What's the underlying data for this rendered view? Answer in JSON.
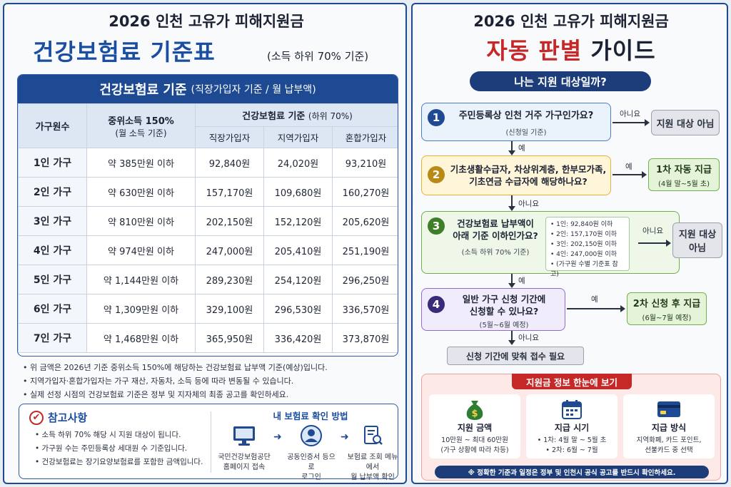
{
  "left": {
    "title_line1": "2026 인천 고유가 피해지원금",
    "title_line2": "건강보험료 기준표",
    "title_note": "(소득 하위 70% 기준)",
    "table_title": "건강보험료 기준",
    "table_title_sub": "(직장가입자 기준 / 월 납부액)",
    "col_household": "가구원수",
    "col_income": "중위소득 150%",
    "col_income_sub": "(월 소득 기준)",
    "col_premium": "건강보험료 기준",
    "col_premium_sub": "(하위 70%)",
    "col_employee": "직장가입자",
    "col_regional": "지역가입자",
    "col_mixed": "혼합가입자",
    "rows": [
      {
        "household": "1인 가구",
        "income": "약 385만원 이하",
        "employee": "92,840원",
        "regional": "24,020원",
        "mixed": "93,210원"
      },
      {
        "household": "2인 가구",
        "income": "약 630만원 이하",
        "employee": "157,170원",
        "regional": "109,680원",
        "mixed": "160,270원"
      },
      {
        "household": "3인 가구",
        "income": "약 810만원 이하",
        "employee": "202,150원",
        "regional": "152,120원",
        "mixed": "205,620원"
      },
      {
        "household": "4인 가구",
        "income": "약 974만원 이하",
        "employee": "247,000원",
        "regional": "205,410원",
        "mixed": "251,190원"
      },
      {
        "household": "5인 가구",
        "income": "약 1,144만원 이하",
        "employee": "289,230원",
        "regional": "254,120원",
        "mixed": "296,250원"
      },
      {
        "household": "6인 가구",
        "income": "약 1,309만원 이하",
        "employee": "329,100원",
        "regional": "296,530원",
        "mixed": "336,570원"
      },
      {
        "household": "7인 가구",
        "income": "약 1,468만원 이하",
        "employee": "365,950원",
        "regional": "336,420원",
        "mixed": "373,870원"
      }
    ],
    "notes": [
      "위 금액은 2026년 기준 중위소득 150%에 해당하는 건강보험료 납부액 기준(예상)입니다.",
      "지역가입자·혼합가입자는 가구 재산, 자동차, 소득 등에 따라 변동될 수 있습니다.",
      "실제 선정 시점의 건강보험료 기준은 정부 및 지자체의 최종 공고를 확인하세요."
    ],
    "ref_title": "참고사항",
    "ref_items": [
      "소득 하위 70% 해당 시 지원 대상이 됩니다.",
      "가구원 수는 주민등록상 세대원 수 기준입니다.",
      "건강보험료는 장기요양보험료를 포함한 금액입니다."
    ],
    "how_title": "내 보험료 확인 방법",
    "how_steps": [
      {
        "line1": "국민건강보험공단",
        "line2": "홈페이지 접속",
        "icon": "monitor-icon"
      },
      {
        "line1": "공동인증서 등으로",
        "line2": "로그인",
        "icon": "user-badge-icon"
      },
      {
        "line1": "보험료 조회 메뉴에서",
        "line2": "월 납부액 확인",
        "icon": "document-search-icon"
      }
    ]
  },
  "right": {
    "title_line1": "2026 인천 고유가 피해지원금",
    "title_red": "자동 판별",
    "title_dark": "가이드",
    "pill": "나는 지원 대상일까?",
    "q1": {
      "num": "1",
      "text": "주민등록상 인천 거주 가구인가요?",
      "sub": "(신청일 기준)"
    },
    "q2": {
      "num": "2",
      "line1": "기초생활수급자, 차상위계층, 한부모가족,",
      "line2": "기초연금 수급자에 해당하나요?"
    },
    "q3": {
      "num": "3",
      "line1": "건강보험료 납부액이",
      "line2": "아래 기준 이하인가요?",
      "sub": "(소득 하위 70% 기준)"
    },
    "q4": {
      "num": "4",
      "line1": "일반 가구 신청 기간에",
      "line2": "신청할 수 있나요?",
      "sub": "(5월~6월 예정)"
    },
    "criteria": [
      "1인: 92,840원 이하",
      "2인: 157,170원 이하",
      "3인: 202,150원 이하",
      "4인: 247,000원 이하",
      "(가구원 수별 기준표 참고)"
    ],
    "r1": "지원 대상 아님",
    "r2_title": "1차 자동 지급",
    "r2_sub": "(4월 말~5월 초)",
    "r3_line1": "지원 대상",
    "r3_line2": "아님",
    "r4_title": "2차 신청 후 지급",
    "r4_sub": "(6월~7월 예정)",
    "label_no": "아니요",
    "label_yes": "예",
    "final": "신청 기간에 맞춰 접수 필요",
    "info_title": "지원금 정보 한눈에 보기",
    "cards": [
      {
        "icon": "money-bag-icon",
        "title": "지원 금액",
        "line1": "10만원 ~ 최대 60만원",
        "line2": "(가구 상황에 따라 차등)"
      },
      {
        "icon": "calendar-icon",
        "title": "지급 시기",
        "line1": "• 1차: 4월 말 ~ 5월 초",
        "line2": "• 2차: 6월 ~ 7월"
      },
      {
        "icon": "card-icon",
        "title": "지급 방식",
        "line1": "지역화폐, 카드 포인트,",
        "line2": "선불카드 중 선택"
      }
    ],
    "info_note": "※ 정확한 기준과 일정은 정부 및 인천시 공식 공고를 반드시 확인하세요."
  },
  "colors": {
    "navy": "#1e4a94",
    "red": "#c62828",
    "green": "#74b04f",
    "yellow": "#e0b43a",
    "purple": "#8f6cc7"
  }
}
